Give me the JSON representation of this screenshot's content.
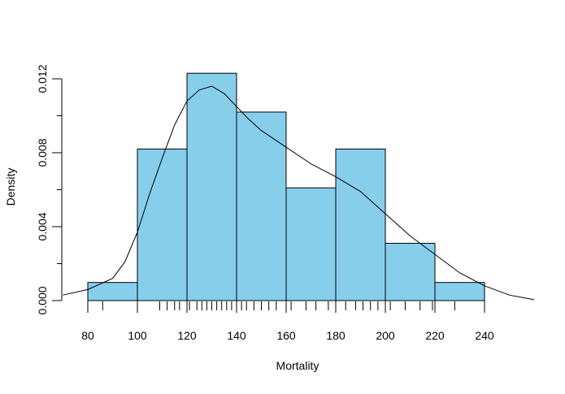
{
  "chart_data": {
    "type": "histogram",
    "title": "",
    "xlabel": "Mortality",
    "ylabel": "Density",
    "xlim": [
      70,
      260
    ],
    "ylim": [
      0,
      0.0122
    ],
    "x_ticks": [
      80,
      100,
      120,
      140,
      160,
      180,
      200,
      220,
      240
    ],
    "x_tick_labels": [
      "80",
      "100",
      "120",
      "140",
      "160",
      "180",
      "200",
      "220",
      "240"
    ],
    "y_ticks": [
      0,
      0.004,
      0.008,
      0.012
    ],
    "y_tick_labels": [
      "0.000",
      "0.004",
      "0.008",
      "0.012"
    ],
    "bins": [
      {
        "from": 80,
        "to": 100,
        "density": 0.00098
      },
      {
        "from": 100,
        "to": 120,
        "density": 0.0082
      },
      {
        "from": 120,
        "to": 140,
        "density": 0.0123
      },
      {
        "from": 140,
        "to": 160,
        "density": 0.0102
      },
      {
        "from": 160,
        "to": 180,
        "density": 0.0061
      },
      {
        "from": 180,
        "to": 200,
        "density": 0.0082
      },
      {
        "from": 200,
        "to": 220,
        "density": 0.0031
      },
      {
        "from": 220,
        "to": 240,
        "density": 0.00098
      }
    ],
    "bar_color": "#87CEEB",
    "density_curve": {
      "x": [
        70,
        80,
        90,
        95,
        100,
        105,
        110,
        115,
        120,
        125,
        130,
        135,
        140,
        145,
        150,
        160,
        170,
        180,
        190,
        200,
        210,
        220,
        230,
        240,
        250,
        260
      ],
      "y": [
        0.0003,
        0.0006,
        0.0012,
        0.0021,
        0.0037,
        0.0058,
        0.0077,
        0.0095,
        0.0108,
        0.0114,
        0.0116,
        0.0112,
        0.0105,
        0.0098,
        0.0092,
        0.0083,
        0.0074,
        0.0067,
        0.0059,
        0.0047,
        0.0035,
        0.0025,
        0.0015,
        0.0008,
        0.0003,
        5e-05
      ]
    },
    "rug": [
      86,
      109,
      112,
      115,
      117,
      121,
      124,
      126,
      128,
      130,
      132,
      134,
      136,
      138,
      140,
      142,
      144,
      147,
      150,
      153,
      156,
      162,
      168,
      172,
      177,
      180,
      184,
      188,
      191,
      194,
      197,
      202,
      208,
      214,
      219,
      228
    ],
    "grid": false,
    "legend": "none"
  }
}
